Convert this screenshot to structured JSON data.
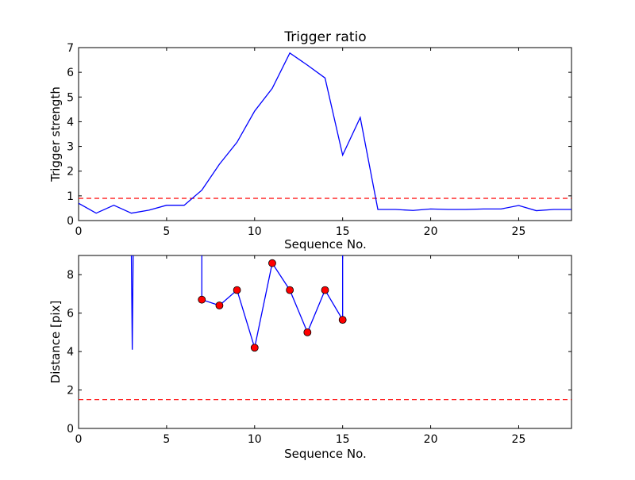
{
  "chart_data": [
    {
      "type": "line",
      "title": "Trigger ratio",
      "xlabel": "Sequence No.",
      "ylabel": "Trigger strength",
      "xlim": [
        0,
        28
      ],
      "ylim": [
        0,
        7
      ],
      "xticks": [
        0,
        5,
        10,
        15,
        20,
        25
      ],
      "yticks": [
        0,
        1,
        2,
        3,
        4,
        5,
        6,
        7
      ],
      "grid": false,
      "series": [
        {
          "color": "#0000ff",
          "style": "solid",
          "x": [
            0,
            1,
            2,
            3,
            4,
            5,
            6,
            7,
            8,
            9,
            10,
            11,
            12,
            13,
            14,
            15,
            16,
            17,
            18,
            19,
            20,
            21,
            22,
            23,
            24,
            25,
            26,
            27,
            28
          ],
          "y": [
            0.7,
            0.3,
            0.62,
            0.3,
            0.42,
            0.62,
            0.62,
            1.23,
            2.28,
            3.17,
            4.43,
            5.35,
            6.78,
            6.29,
            5.77,
            2.65,
            4.17,
            0.45,
            0.45,
            0.41,
            0.47,
            0.45,
            0.45,
            0.47,
            0.47,
            0.61,
            0.4,
            0.45,
            0.45
          ]
        }
      ],
      "reference_line": {
        "y": 0.9,
        "color": "#ff0000",
        "style": "dashed"
      }
    },
    {
      "type": "line",
      "title": "",
      "xlabel": "Sequence No.",
      "ylabel": "Distance [pix]",
      "xlim": [
        0,
        28
      ],
      "ylim": [
        0,
        9
      ],
      "xticks": [
        0,
        5,
        10,
        15,
        20,
        25
      ],
      "yticks": [
        0,
        2,
        4,
        6,
        8
      ],
      "grid": false,
      "series": [
        {
          "color": "#0000ff",
          "style": "solid",
          "x": [
            3,
            3.05,
            3.1
          ],
          "y": [
            9,
            4.1,
            9
          ]
        },
        {
          "color": "#0000ff",
          "style": "solid",
          "marker": "circle",
          "marker_color": "#ff0000",
          "x": [
            7,
            7,
            8,
            9,
            10,
            11,
            12,
            13,
            14,
            15,
            15
          ],
          "y": [
            9,
            6.7,
            6.4,
            7.2,
            4.2,
            8.6,
            7.2,
            5.0,
            7.2,
            5.65,
            9
          ],
          "marker_x": [
            7,
            8,
            9,
            10,
            11,
            12,
            13,
            14,
            15
          ],
          "marker_y": [
            6.7,
            6.4,
            7.2,
            4.2,
            8.6,
            7.2,
            5.0,
            7.2,
            5.65
          ]
        }
      ],
      "reference_line": {
        "y": 1.5,
        "color": "#ff0000",
        "style": "dashed"
      }
    }
  ]
}
